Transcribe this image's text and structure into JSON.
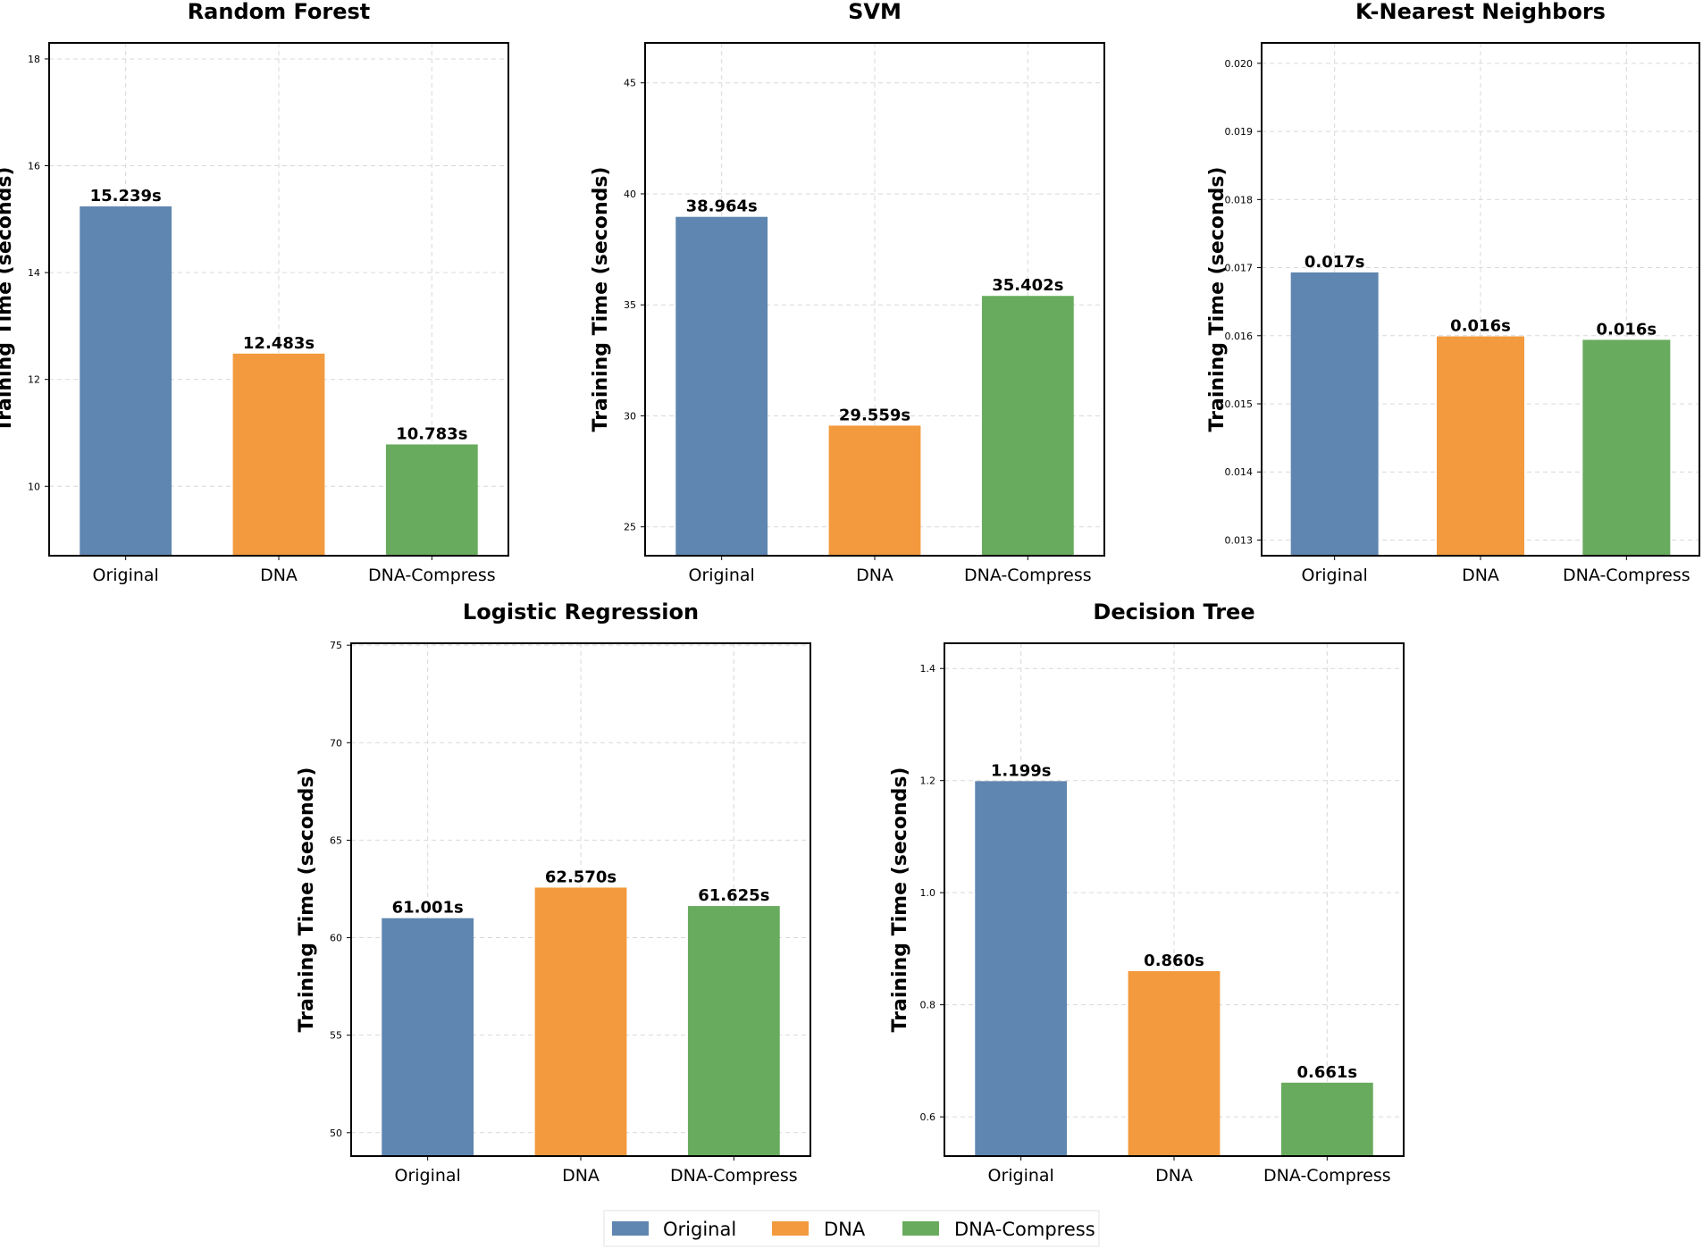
{
  "chart_data": [
    {
      "type": "bar",
      "title": "Random Forest",
      "ylabel": "Training Time (seconds)",
      "xlabel": "",
      "categories": [
        "Original",
        "DNA",
        "DNA-Compress"
      ],
      "values": [
        15.239,
        12.483,
        10.783
      ],
      "data_labels": [
        "15.239s",
        "12.483s",
        "10.783s"
      ],
      "ylim": [
        8.7,
        18.3
      ],
      "yticks": [
        10,
        12,
        14,
        16,
        18
      ],
      "ytick_labels": [
        "10",
        "12",
        "14",
        "16",
        "18"
      ],
      "grid": true
    },
    {
      "type": "bar",
      "title": "SVM",
      "ylabel": "Training Time (seconds)",
      "xlabel": "",
      "categories": [
        "Original",
        "DNA",
        "DNA-Compress"
      ],
      "values": [
        38.964,
        29.559,
        35.402
      ],
      "data_labels": [
        "38.964s",
        "29.559s",
        "35.402s"
      ],
      "ylim": [
        23.7,
        46.8
      ],
      "yticks": [
        25,
        30,
        35,
        40,
        45
      ],
      "ytick_labels": [
        "25",
        "30",
        "35",
        "40",
        "45"
      ],
      "grid": true
    },
    {
      "type": "bar",
      "title": "K-Nearest Neighbors",
      "ylabel": "Training Time (seconds)",
      "xlabel": "",
      "categories": [
        "Original",
        "DNA",
        "DNA-Compress"
      ],
      "values": [
        0.01693,
        0.01599,
        0.01594
      ],
      "data_labels": [
        "0.017s",
        "0.016s",
        "0.016s"
      ],
      "ylim": [
        0.01277,
        0.0203
      ],
      "yticks": [
        0.013,
        0.014,
        0.015,
        0.016,
        0.017,
        0.018,
        0.019,
        0.02
      ],
      "ytick_labels": [
        "0.013",
        "0.014",
        "0.015",
        "0.016",
        "0.017",
        "0.018",
        "0.019",
        "0.020"
      ],
      "grid": true
    },
    {
      "type": "bar",
      "title": "Logistic Regression",
      "ylabel": "Training Time (seconds)",
      "xlabel": "",
      "categories": [
        "Original",
        "DNA",
        "DNA-Compress"
      ],
      "values": [
        61.001,
        62.57,
        61.625
      ],
      "data_labels": [
        "61.001s",
        "62.570s",
        "61.625s"
      ],
      "ylim": [
        48.8,
        75.1
      ],
      "yticks": [
        50,
        55,
        60,
        65,
        70,
        75
      ],
      "ytick_labels": [
        "50",
        "55",
        "60",
        "65",
        "70",
        "75"
      ],
      "grid": true
    },
    {
      "type": "bar",
      "title": "Decision Tree",
      "ylabel": "Training Time (seconds)",
      "xlabel": "",
      "categories": [
        "Original",
        "DNA",
        "DNA-Compress"
      ],
      "values": [
        1.199,
        0.86,
        0.661
      ],
      "data_labels": [
        "1.199s",
        "0.860s",
        "0.661s"
      ],
      "ylim": [
        0.53,
        1.445
      ],
      "yticks": [
        0.6,
        0.8,
        1.0,
        1.2,
        1.4
      ],
      "ytick_labels": [
        "0.6",
        "0.8",
        "1.0",
        "1.2",
        "1.4"
      ],
      "grid": true
    }
  ],
  "legend": {
    "placement": "bottom-center",
    "items": [
      {
        "label": "Original",
        "color": "#5f86b0"
      },
      {
        "label": "DNA",
        "color": "#f29a3d"
      },
      {
        "label": "DNA-Compress",
        "color": "#69ab5e"
      }
    ]
  },
  "colors": {
    "Original": "#5f86b0",
    "DNA": "#f29a3d",
    "DNA-Compress": "#69ab5e"
  }
}
